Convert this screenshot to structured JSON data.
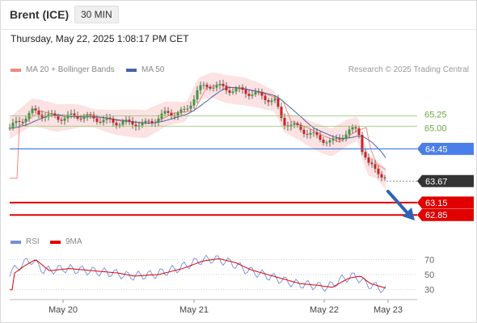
{
  "header": {
    "instrument": "Brent (ICE)",
    "timeframe": "30 MIN"
  },
  "timestamp": "Thursday, May 22, 2025 1:08:17 PM CET",
  "legend": {
    "ma20_label": "MA 20 + Bollinger Bands",
    "ma50_label": "MA 50"
  },
  "credit": "Research © 2025 Trading Central",
  "rsi_legend": {
    "rsi_label": "RSI",
    "ma_label": "9MA"
  },
  "colors": {
    "ma20": "#f08a80",
    "ma50": "#4a63a8",
    "band": "#fbd8d8",
    "pivot": "#4a7ee8",
    "support": "#e00000",
    "price": "#333333",
    "target": "#8dc46a",
    "rsi": "#6f8fe0",
    "rsi_ma": "#e00000",
    "bull": "#3a9a3a",
    "bear": "#cc2222",
    "arrow": "#2e62b5"
  },
  "chart_data": {
    "type": "candlestick",
    "y_range": [
      62.6,
      66.1
    ],
    "x_labels": [
      "May 20",
      "May 21",
      "May 22",
      "May 23"
    ],
    "levels": [
      {
        "label": "65.25",
        "value": 65.25,
        "role": "target"
      },
      {
        "label": "65.00",
        "value": 65.0,
        "role": "target"
      },
      {
        "label": "64.45",
        "value": 64.45,
        "role": "pivot"
      },
      {
        "label": "63.67",
        "value": 63.67,
        "role": "last"
      },
      {
        "label": "63.15",
        "value": 63.15,
        "role": "support"
      },
      {
        "label": "62.85",
        "value": 62.85,
        "role": "support"
      }
    ],
    "rsi": {
      "ticks": [
        "70",
        "50",
        "30"
      ],
      "range": [
        20,
        80
      ]
    }
  }
}
